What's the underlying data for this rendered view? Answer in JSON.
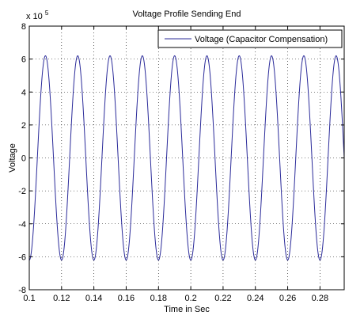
{
  "chart_data": {
    "type": "line",
    "title": "Voltage Profile Sending End",
    "xlabel": "Time in Sec",
    "ylabel": "Voltage",
    "y_multiplier": "x 10",
    "y_exponent": "5",
    "xlim": [
      0.1,
      0.295
    ],
    "ylim": [
      -8,
      8
    ],
    "x_ticks": [
      "0.1",
      "0.12",
      "0.14",
      "0.16",
      "0.18",
      "0.2",
      "0.22",
      "0.24",
      "0.26",
      "0.28"
    ],
    "x_tick_values": [
      0.1,
      0.12,
      0.14,
      0.16,
      0.18,
      0.2,
      0.22,
      0.24,
      0.26,
      0.28
    ],
    "y_ticks": [
      "-8",
      "-6",
      "-4",
      "-2",
      "0",
      "2",
      "4",
      "6",
      "8"
    ],
    "y_tick_values": [
      -8,
      -6,
      -4,
      -2,
      0,
      2,
      4,
      6,
      8
    ],
    "grid": true,
    "legend_position": "top-right",
    "series": [
      {
        "name": "Voltage (Capacitor Compensation)",
        "color": "#2b2b9a",
        "waveform": "sine",
        "amplitude": 6.2,
        "frequency_hz": 50,
        "phase_deg": -90,
        "t_start": 0.1,
        "t_end": 0.295
      }
    ]
  }
}
